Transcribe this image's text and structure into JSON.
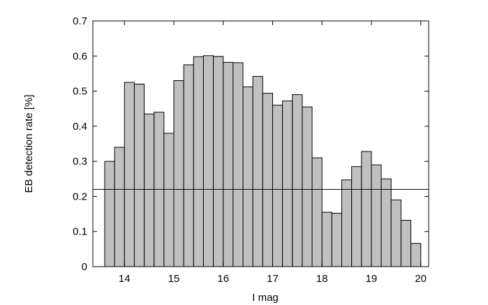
{
  "chart_data": {
    "type": "histogram",
    "xlabel": "I mag",
    "ylabel": "EB detection rate [%]",
    "bins": [
      13.6,
      13.8,
      14.0,
      14.2,
      14.4,
      14.6,
      14.8,
      15.0,
      15.2,
      15.4,
      15.6,
      15.8,
      16.0,
      16.2,
      16.4,
      16.6,
      16.8,
      17.0,
      17.2,
      17.4,
      17.6,
      17.8,
      18.0,
      18.2,
      18.4,
      18.6,
      18.8,
      19.0,
      19.2,
      19.4,
      19.6,
      19.8,
      20.0
    ],
    "values": [
      0.3,
      0.34,
      0.525,
      0.52,
      0.435,
      0.44,
      0.38,
      0.53,
      0.575,
      0.598,
      0.601,
      0.599,
      0.582,
      0.581,
      0.512,
      0.542,
      0.494,
      0.46,
      0.472,
      0.49,
      0.455,
      0.31,
      0.155,
      0.152,
      0.247,
      0.285,
      0.328,
      0.29,
      0.25,
      0.19,
      0.132,
      0.066
    ],
    "color": "#c0c0c0",
    "hline": 0.22,
    "xlim": [
      13.36,
      20.16
    ],
    "xticks": [
      14,
      15,
      16,
      17,
      18,
      19,
      20
    ],
    "ylim": [
      0,
      0.7
    ],
    "yticks": [
      0,
      0.1,
      0.2,
      0.3,
      0.4,
      0.5,
      0.6,
      0.7
    ]
  }
}
